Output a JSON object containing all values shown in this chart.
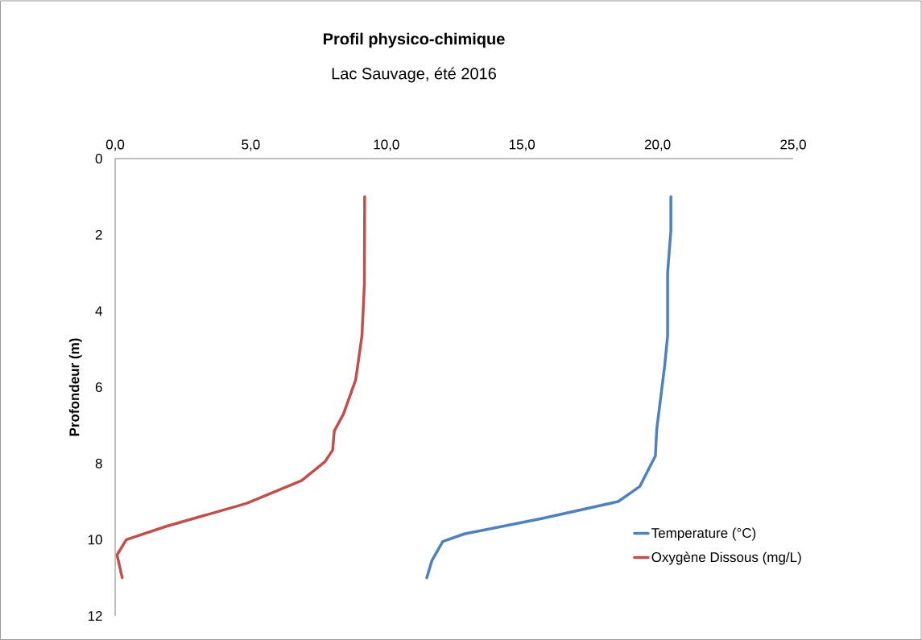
{
  "chart_data": {
    "type": "line",
    "title": "Profil physico-chimique",
    "subtitle": "Lac Sauvage, été 2016",
    "ylabel": "Profondeur (m)",
    "xlim": [
      0,
      25
    ],
    "xticks": [
      {
        "value": 0,
        "label": "0,0"
      },
      {
        "value": 5,
        "label": "5,0"
      },
      {
        "value": 10,
        "label": "10,0"
      },
      {
        "value": 15,
        "label": "15,0"
      },
      {
        "value": 20,
        "label": "20,0"
      },
      {
        "value": 25,
        "label": "25,0"
      }
    ],
    "ylim": [
      12,
      0
    ],
    "yticks": [
      0,
      2,
      4,
      6,
      8,
      10,
      12
    ],
    "grid": false,
    "legend": "bottom right",
    "series": [
      {
        "name": "Temperature (°C)",
        "color": "#4f81bd",
        "x": [
          20.49,
          20.49,
          20.37,
          20.37,
          20.26,
          19.97,
          19.92,
          19.35,
          18.55,
          15.71,
          12.87,
          12.08,
          11.68,
          11.49
        ],
        "values": [
          1.0,
          1.9,
          3.0,
          4.65,
          5.45,
          7.1,
          7.8,
          8.6,
          9.0,
          9.45,
          9.85,
          10.05,
          10.55,
          11.0
        ]
      },
      {
        "name": "Oxygène Dissous (mg/L)",
        "color": "#c0504d",
        "x": [
          9.2,
          9.19,
          9.1,
          8.87,
          8.42,
          8.08,
          8.02,
          7.74,
          6.88,
          4.84,
          1.89,
          0.41,
          0.07,
          0.26
        ],
        "values": [
          1.0,
          3.3,
          4.65,
          5.8,
          6.7,
          7.15,
          7.65,
          7.95,
          8.45,
          9.05,
          9.65,
          10.0,
          10.4,
          11.0
        ]
      }
    ]
  }
}
